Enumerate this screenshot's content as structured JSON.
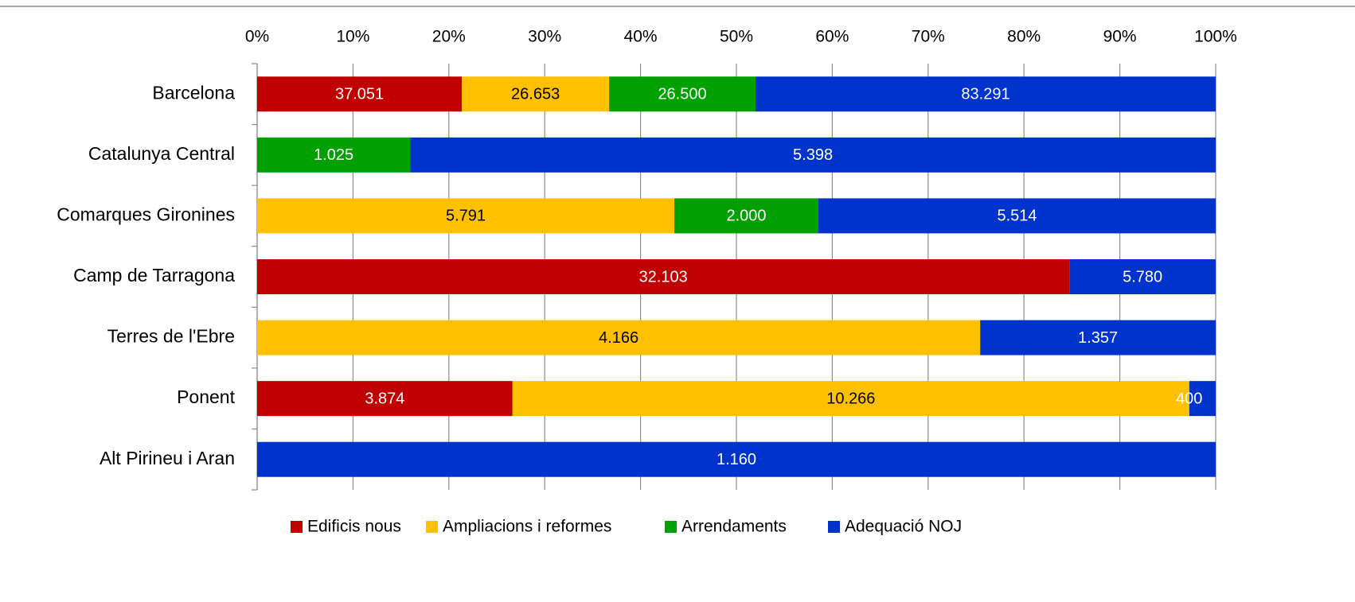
{
  "chart_data": {
    "type": "bar",
    "orientation": "horizontal",
    "stack": "percent",
    "categories": [
      "Barcelona",
      "Catalunya Central",
      "Comarques Gironines",
      "Camp de Tarragona",
      "Terres de l'Ebre",
      "Ponent",
      "Alt Pirineu i Aran"
    ],
    "series": [
      {
        "name": "Edificis nous",
        "color": "#c00000",
        "values": [
          37051,
          null,
          null,
          32103,
          null,
          3874,
          null
        ],
        "value_labels": [
          "37.051",
          null,
          null,
          "32.103",
          null,
          "3.874",
          null
        ]
      },
      {
        "name": "Ampliacions i reformes",
        "color": "#ffc000",
        "values": [
          26653,
          null,
          5791,
          null,
          4166,
          10266,
          null
        ],
        "value_labels": [
          "26.653",
          null,
          "5.791",
          null,
          "4.166",
          "10.266",
          null
        ]
      },
      {
        "name": "Arrendaments",
        "color": "#00a000",
        "values": [
          26500,
          1025,
          2000,
          null,
          null,
          null,
          null
        ],
        "value_labels": [
          "26.500",
          "1.025",
          "2.000",
          null,
          null,
          null,
          null
        ]
      },
      {
        "name": "Adequació NOJ",
        "color": "#0033cc",
        "values": [
          83291,
          5398,
          5514,
          5780,
          1357,
          400,
          1160
        ],
        "value_labels": [
          "83.291",
          "5.398",
          "5.514",
          "5.780",
          "1.357",
          "400",
          "1.160"
        ]
      }
    ],
    "xlim": [
      0,
      100
    ],
    "xticks": [
      {
        "value": 0,
        "label": "0%"
      },
      {
        "value": 10,
        "label": "10%"
      },
      {
        "value": 20,
        "label": "20%"
      },
      {
        "value": 30,
        "label": "30%"
      },
      {
        "value": 40,
        "label": "40%"
      },
      {
        "value": 50,
        "label": "50%"
      },
      {
        "value": 60,
        "label": "60%"
      },
      {
        "value": 70,
        "label": "70%"
      },
      {
        "value": 80,
        "label": "80%"
      },
      {
        "value": 90,
        "label": "90%"
      },
      {
        "value": 100,
        "label": "100%"
      }
    ],
    "grid": true,
    "legend": "bottom"
  }
}
